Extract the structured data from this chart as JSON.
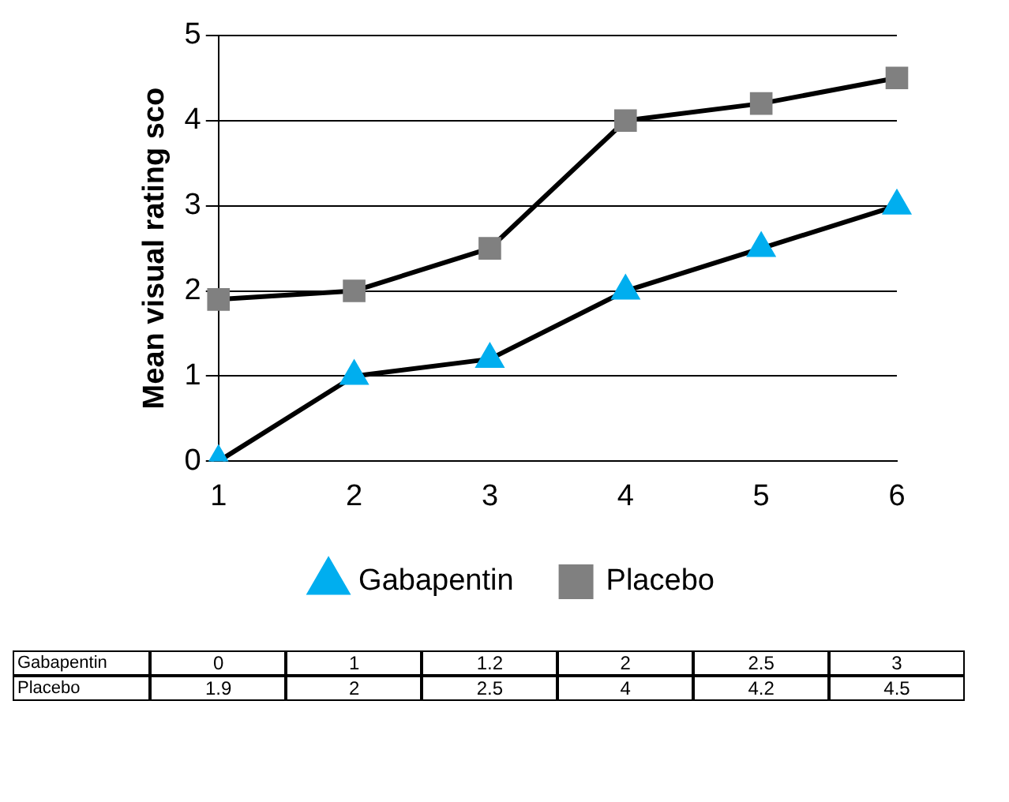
{
  "chart_data": {
    "type": "line",
    "ylabel": "Mean visual rating sco",
    "categories": [
      "1",
      "2",
      "3",
      "4",
      "5",
      "6"
    ],
    "series": [
      {
        "name": "Gabapentin",
        "color": "#00aeef",
        "marker": "triangle",
        "values": [
          0,
          1,
          1.2,
          2,
          2.5,
          3
        ],
        "value_labels": [
          "0",
          "1",
          "1.2",
          "2",
          "2.5",
          "3"
        ]
      },
      {
        "name": "Placebo",
        "color": "#808080",
        "marker": "square",
        "values": [
          1.9,
          2,
          2.5,
          4,
          4.2,
          4.5
        ],
        "value_labels": [
          "1.9",
          "2",
          "2.5",
          "4",
          "4.2",
          "4.5"
        ]
      }
    ],
    "ylim": [
      0,
      5
    ],
    "yticks": [
      0,
      1,
      2,
      3,
      4,
      5
    ],
    "grid": "y",
    "legend": "bottom",
    "line_style": "solid"
  }
}
